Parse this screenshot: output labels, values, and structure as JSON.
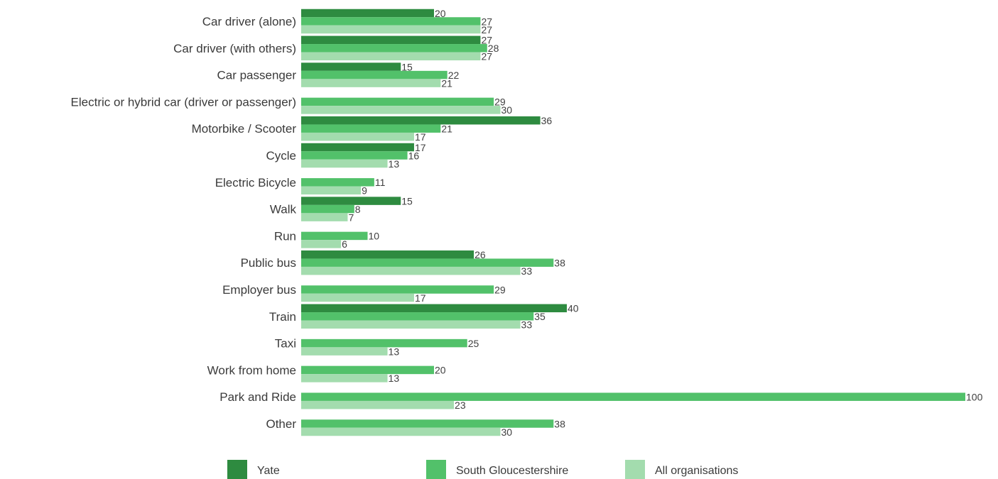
{
  "chart_data": {
    "type": "bar",
    "orientation": "horizontal",
    "title": "",
    "xlabel": "",
    "ylabel": "",
    "xlim": [
      0,
      100
    ],
    "grid": false,
    "legend_position": "bottom",
    "categories": [
      "Car driver (alone)",
      "Car driver (with others)",
      "Car passenger",
      "Electric or hybrid car (driver or passenger)",
      "Motorbike / Scooter",
      "Cycle",
      "Electric Bicycle",
      "Walk",
      "Run",
      "Public bus",
      "Employer bus",
      "Train",
      "Taxi",
      "Work from home",
      "Park and Ride",
      "Other"
    ],
    "series": [
      {
        "name": "Yate",
        "color": "#2e8b40",
        "values": [
          20,
          27,
          15,
          null,
          36,
          17,
          null,
          15,
          null,
          26,
          null,
          40,
          null,
          null,
          null,
          null
        ]
      },
      {
        "name": "South Gloucestershire",
        "color": "#52c16a",
        "values": [
          27,
          28,
          22,
          29,
          21,
          16,
          11,
          8,
          10,
          38,
          29,
          35,
          25,
          20,
          100,
          38
        ]
      },
      {
        "name": "All organisations",
        "color": "#a3dcae",
        "values": [
          27,
          27,
          21,
          30,
          17,
          13,
          9,
          7,
          6,
          33,
          17,
          33,
          13,
          13,
          23,
          30
        ]
      }
    ]
  }
}
